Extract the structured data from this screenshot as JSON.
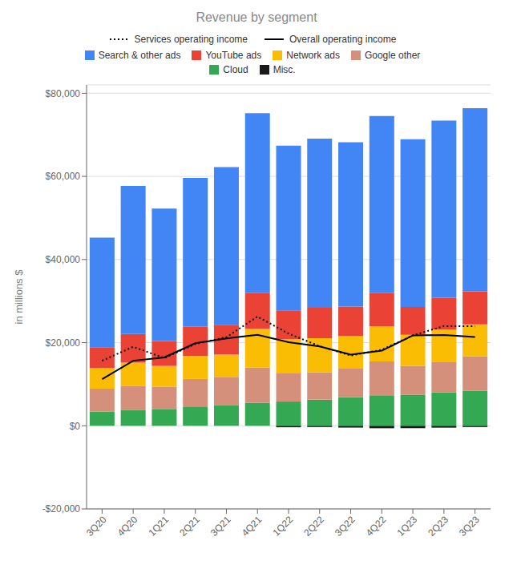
{
  "chart_data": {
    "type": "bar",
    "title": "Revenue by segment",
    "ylabel": "in millions $",
    "stacked": true,
    "grid": true,
    "legend": "top",
    "categories": [
      "3Q20",
      "4Q20",
      "1Q21",
      "2Q21",
      "3Q21",
      "4Q21",
      "1Q22",
      "2Q22",
      "3Q22",
      "4Q22",
      "1Q23",
      "2Q23",
      "3Q23"
    ],
    "ylim": [
      -20000,
      82000
    ],
    "yticks": [
      {
        "value": -20000,
        "label": "-$20,000"
      },
      {
        "value": 0,
        "label": "$0"
      },
      {
        "value": 20000,
        "label": "$20,000"
      },
      {
        "value": 40000,
        "label": "$40,000"
      },
      {
        "value": 60000,
        "label": "$60,000"
      },
      {
        "value": 80000,
        "label": "$80,000"
      }
    ],
    "series": [
      {
        "name": "Services operating income",
        "type": "line",
        "color": "#000000",
        "line_style": "dotted",
        "values": [
          15651,
          19003,
          16292,
          19682,
          21315,
          26265,
          22177,
          19147,
          16904,
          18283,
          21737,
          23988,
          23937
        ]
      },
      {
        "name": "Overall operating income",
        "type": "line",
        "color": "#000000",
        "line_style": "solid",
        "values": [
          11213,
          15651,
          16437,
          19864,
          21031,
          21885,
          20094,
          19105,
          17140,
          18059,
          21743,
          21838,
          21343
        ]
      },
      {
        "name": "Search & other ads",
        "type": "bar",
        "color": "#4285F4",
        "values": [
          26340,
          35616,
          31879,
          35845,
          37926,
          43301,
          39618,
          40686,
          39540,
          42604,
          40359,
          42627,
          44026
        ]
      },
      {
        "name": "YouTube ads",
        "type": "bar",
        "color": "#EA4335",
        "values": [
          5037,
          6884,
          6005,
          7002,
          7205,
          8633,
          6869,
          7340,
          7071,
          7963,
          6693,
          7665,
          7952
        ]
      },
      {
        "name": "Network ads",
        "type": "bar",
        "color": "#FBBC04",
        "values": [
          4962,
          5572,
          4975,
          5543,
          5354,
          9308,
          8172,
          8175,
          7872,
          8476,
          7496,
          7850,
          7669
        ]
      },
      {
        "name": "Google other",
        "type": "bar",
        "color": "#D4907A",
        "values": [
          5481,
          5786,
          5370,
          6623,
          6755,
          8444,
          6900,
          6623,
          6878,
          8161,
          6945,
          7270,
          8338
        ]
      },
      {
        "name": "Cloud",
        "type": "bar",
        "color": "#34A853",
        "values": [
          3444,
          3831,
          4047,
          4628,
          4990,
          5541,
          5822,
          6276,
          6868,
          7315,
          7454,
          8031,
          8411
        ]
      },
      {
        "name": "Misc.",
        "type": "bar",
        "color": "#1a1a1a",
        "values": [
          0,
          0,
          0,
          0,
          0,
          0,
          -359,
          -303,
          -440,
          -593,
          -578,
          -456,
          -304
        ]
      }
    ]
  }
}
